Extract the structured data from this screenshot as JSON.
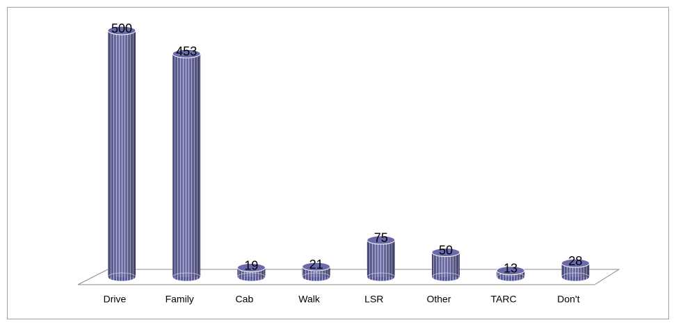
{
  "chart_data": {
    "type": "bar",
    "categories": [
      "Drive",
      "Family",
      "Cab",
      "Walk",
      "LSR",
      "Other",
      "TARC",
      "Don't"
    ],
    "values": [
      500,
      453,
      19,
      21,
      75,
      50,
      13,
      28
    ],
    "color": "#5a5a9a"
  }
}
